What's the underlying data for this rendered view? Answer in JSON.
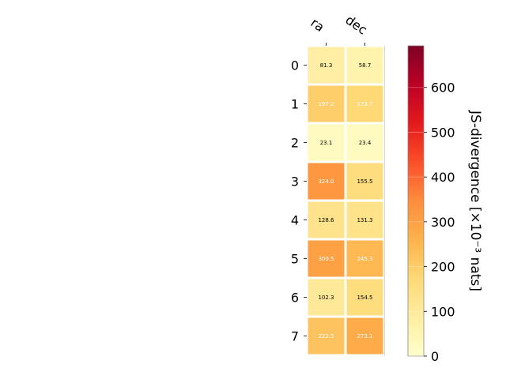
{
  "chart_data": {
    "type": "heatmap",
    "columns": [
      "ra",
      "dec"
    ],
    "rows": [
      "0",
      "1",
      "2",
      "3",
      "4",
      "5",
      "6",
      "7"
    ],
    "values": [
      [
        81.3,
        58.7
      ],
      [
        197.2,
        173.7
      ],
      [
        23.1,
        23.4
      ],
      [
        324.0,
        155.5
      ],
      [
        128.6,
        131.3
      ],
      [
        300.5,
        245.3
      ],
      [
        102.3,
        154.5
      ],
      [
        222.5,
        273.1
      ]
    ],
    "cell_labels": [
      [
        "81.3",
        "58.7"
      ],
      [
        "197.2",
        "173.7"
      ],
      [
        "23.1",
        "23.4"
      ],
      [
        "324.0",
        "155.5"
      ],
      [
        "128.6",
        "131.3"
      ],
      [
        "300.5",
        "245.3"
      ],
      [
        "102.3",
        "154.5"
      ],
      [
        "222.5",
        "273.1"
      ]
    ],
    "colormap": "YlOrRd",
    "colorbar": {
      "label": "JS-divergence [×10⁻³ nats]",
      "range": [
        0,
        693
      ],
      "ticks": [
        0,
        100,
        200,
        300,
        400,
        500,
        600
      ],
      "tick_labels": [
        "0",
        "100",
        "200",
        "300",
        "400",
        "500",
        "600"
      ]
    },
    "text_color_threshold": 173,
    "cell_text_colors": {
      "light": "#ffffff",
      "dark": "#000000"
    }
  }
}
